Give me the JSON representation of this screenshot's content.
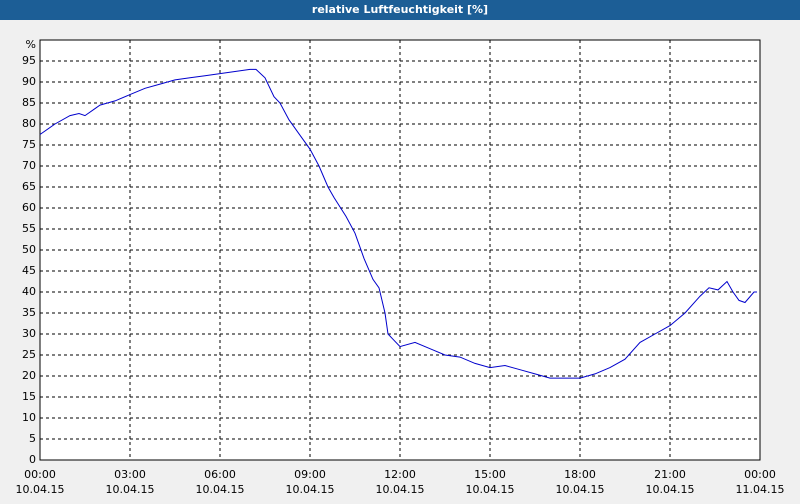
{
  "chart_data": {
    "type": "line",
    "title": "relative Luftfeuchtigkeit [%]",
    "x": [
      0,
      0.5,
      1,
      1.3,
      1.5,
      1.8,
      2,
      2.5,
      3,
      3.5,
      4,
      4.5,
      5,
      5.5,
      6,
      6.5,
      7,
      7.2,
      7.5,
      7.8,
      8,
      8.3,
      8.6,
      9,
      9.3,
      9.6,
      9.8,
      10.2,
      10.5,
      10.8,
      11.1,
      11.3,
      11.5,
      11.6,
      11.8,
      12,
      12.5,
      13,
      13.5,
      14,
      14.5,
      15,
      15.5,
      16,
      16.5,
      17,
      17.5,
      18,
      18.5,
      19,
      19.5,
      20,
      20.5,
      21,
      21.5,
      22,
      22.3,
      22.6,
      22.9,
      23.1,
      23.3,
      23.5,
      23.8,
      23.9
    ],
    "series": [
      {
        "color": "#0000cc",
        "values": [
          77.5,
          80,
          82,
          82.5,
          82,
          83.5,
          84.5,
          85.5,
          87,
          88.5,
          89.5,
          90.5,
          91,
          91.5,
          92,
          92.5,
          93,
          93,
          91,
          86.5,
          85,
          81,
          78,
          74,
          70,
          65,
          62.5,
          58,
          54,
          48,
          43,
          41,
          35,
          30,
          28.5,
          27,
          28,
          26.5,
          25,
          24.5,
          23,
          22,
          22.5,
          21.5,
          20.5,
          19.5,
          19.5,
          19.5,
          20.5,
          22,
          24,
          28,
          30,
          32,
          35,
          39,
          41,
          40.5,
          42.5,
          40,
          38,
          37.5,
          40,
          40
        ]
      }
    ],
    "xlim": [
      0,
      24
    ],
    "xticks": [
      {
        "value": 0,
        "label": "00:00"
      },
      {
        "value": 3,
        "label": "03:00"
      },
      {
        "value": 6,
        "label": "06:00"
      },
      {
        "value": 9,
        "label": "09:00"
      },
      {
        "value": 12,
        "label": "12:00"
      },
      {
        "value": 15,
        "label": "15:00"
      },
      {
        "value": 18,
        "label": "18:00"
      },
      {
        "value": 21,
        "label": "21:00"
      },
      {
        "value": 24,
        "label": "00:00"
      }
    ],
    "xtick_dates": [
      "10.04.15",
      "10.04.15",
      "10.04.15",
      "10.04.15",
      "10.04.15",
      "10.04.15",
      "10.04.15",
      "10.04.15",
      "11.04.15"
    ],
    "ylim": [
      0,
      100
    ],
    "yticks": [
      0,
      5,
      10,
      15,
      20,
      25,
      30,
      35,
      40,
      45,
      50,
      55,
      60,
      65,
      70,
      75,
      80,
      85,
      90,
      95,
      {
        "value": 100,
        "label": "%"
      }
    ],
    "grid": true
  }
}
